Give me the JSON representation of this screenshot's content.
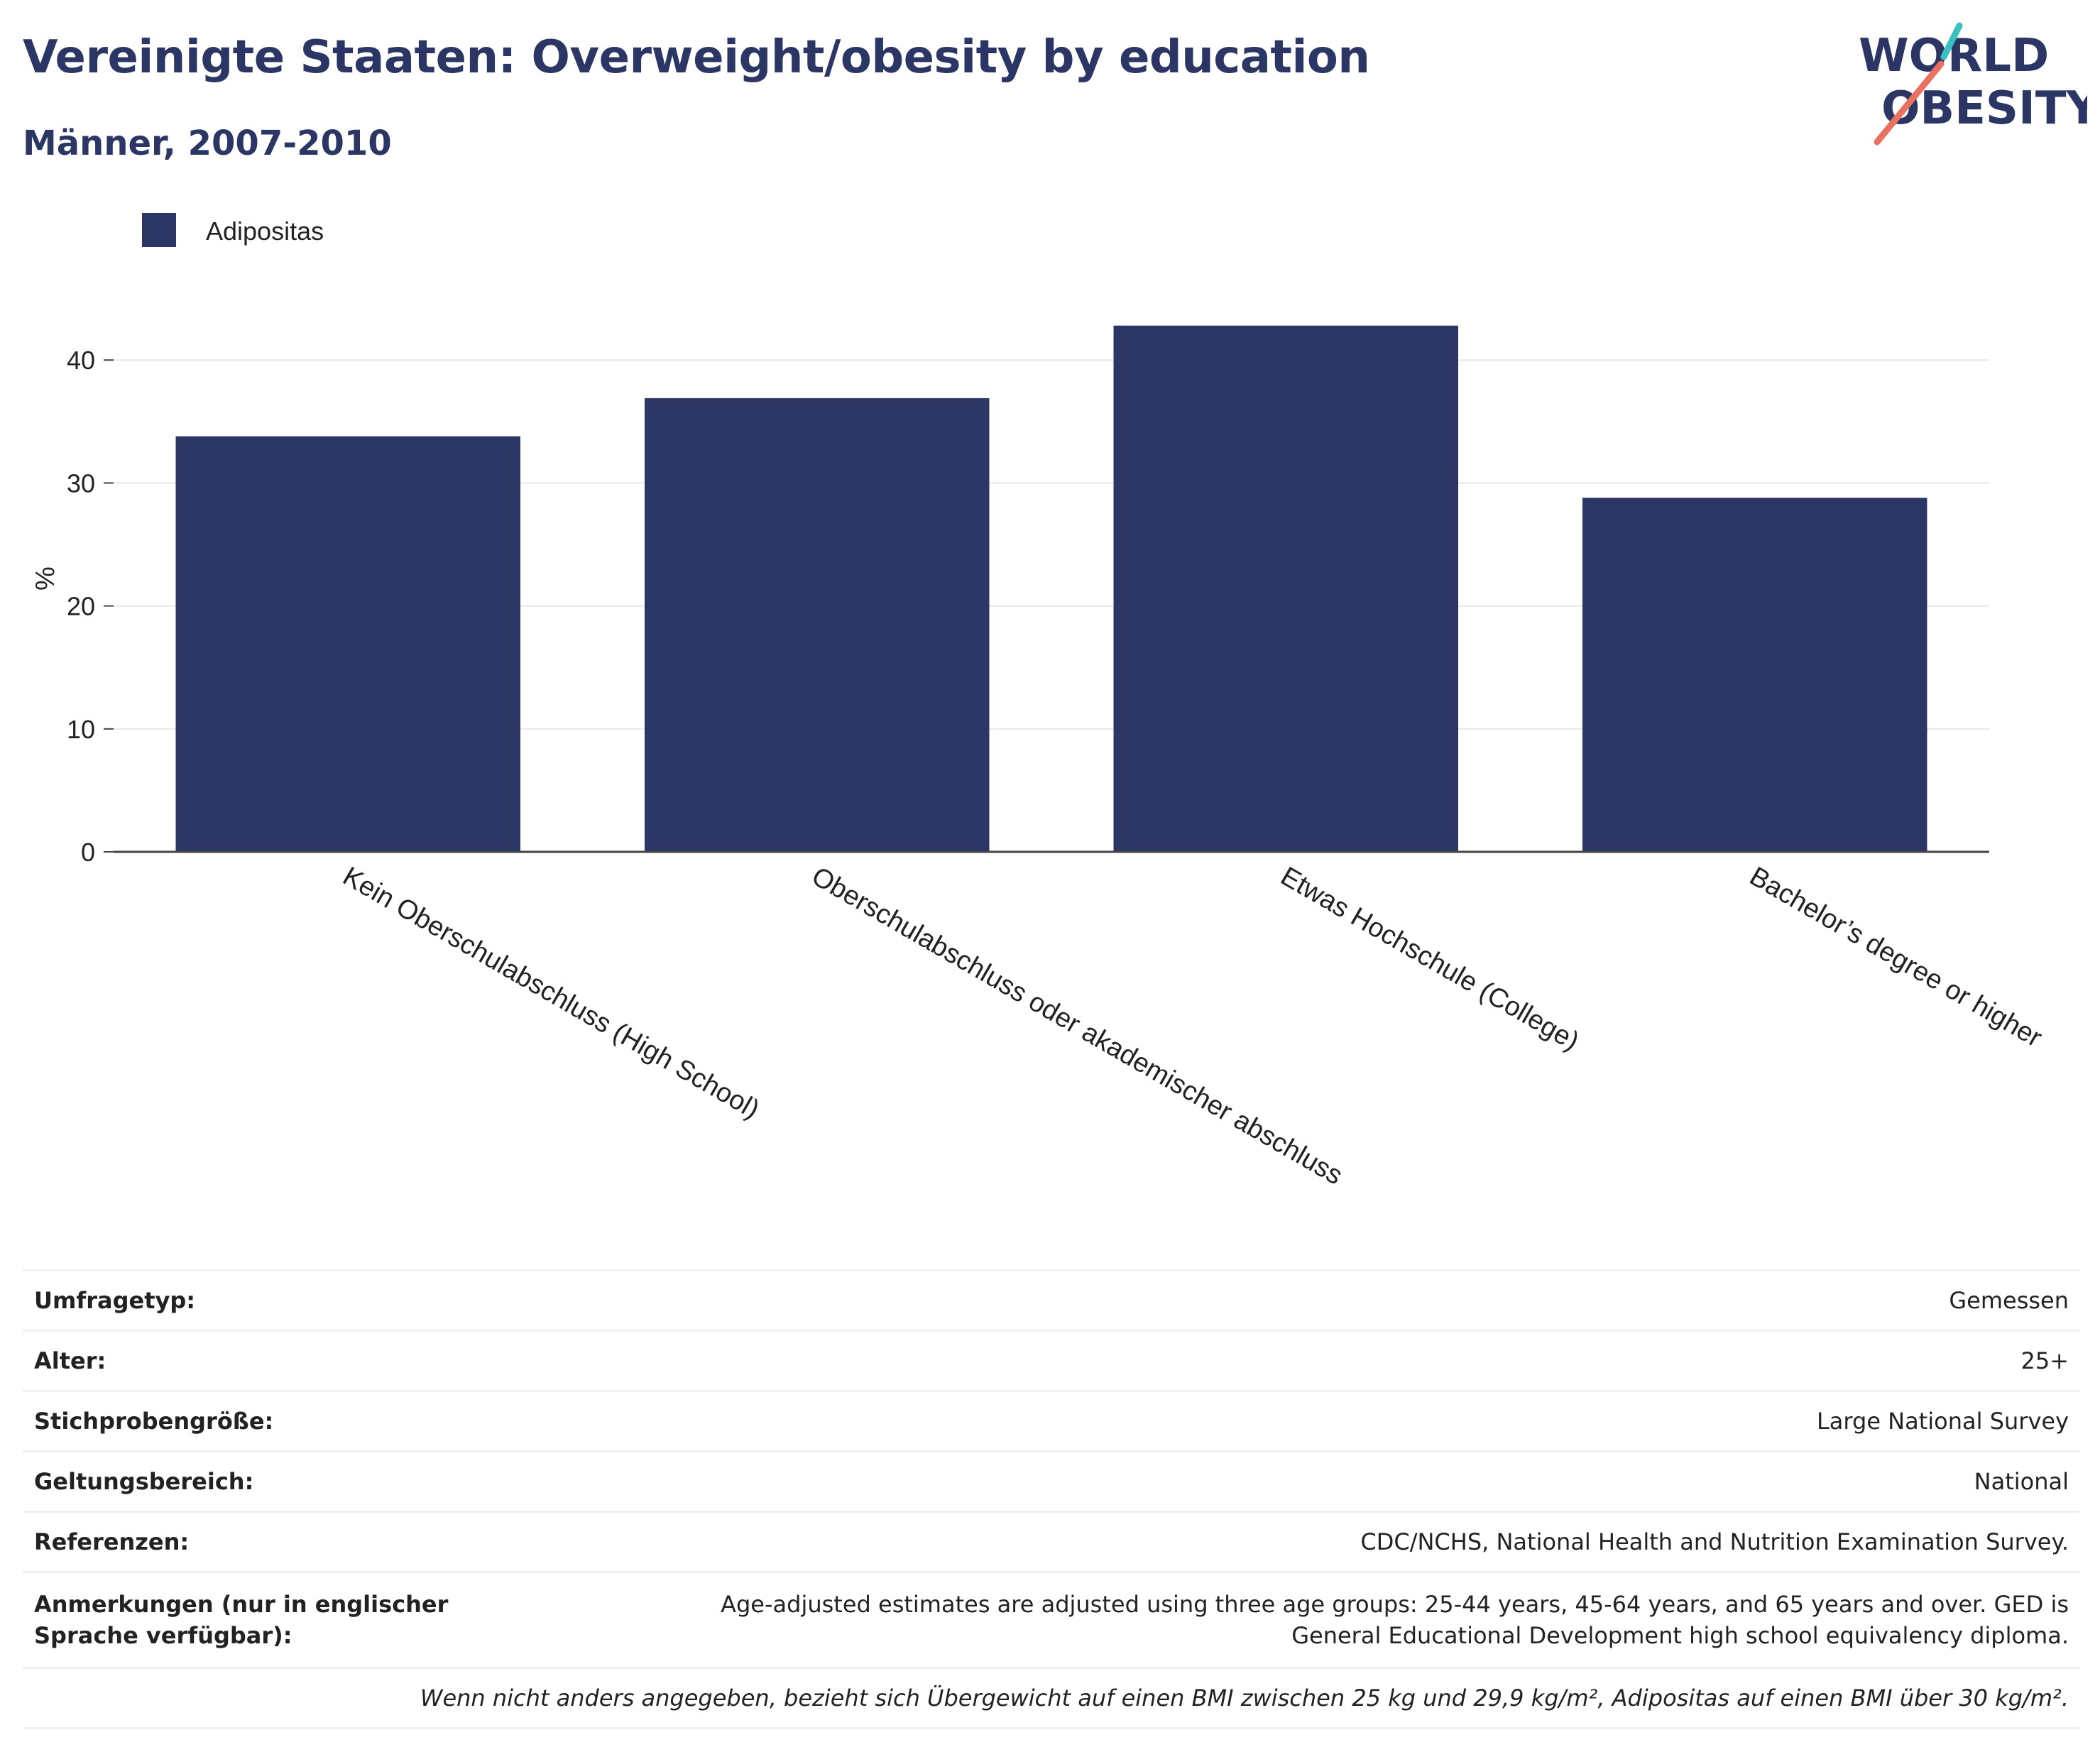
{
  "header": {
    "title": "Vereinigte Staaten: Overweight/obesity by education",
    "subtitle": "Männer, 2007-2010"
  },
  "logo": {
    "line1": "WORLD",
    "line2": "OBESITY",
    "name": "world-obesity-logo"
  },
  "chart_data": {
    "type": "bar",
    "title": "",
    "categories": [
      "Kein Oberschulabschluss (High School)",
      "Oberschulabschluss oder akademischer abschluss",
      "Etwas Hochschule (College)",
      "Bachelor’s degree or higher"
    ],
    "series": [
      {
        "name": "Adipositas",
        "values": [
          33.8,
          36.9,
          42.8,
          28.8
        ],
        "color": "#2b3664"
      }
    ],
    "xlabel": "",
    "ylabel": "%",
    "ylim": [
      0,
      45
    ],
    "yticks": [
      0,
      10,
      20,
      30,
      40
    ],
    "grid": true,
    "legend_position": "top-left"
  },
  "info": {
    "rows": [
      {
        "key": "Umfragetyp:",
        "value": "Gemessen"
      },
      {
        "key": "Alter:",
        "value": "25+"
      },
      {
        "key": "Stichprobengröße:",
        "value": "Large National Survey"
      },
      {
        "key": "Geltungsbereich:",
        "value": "National"
      },
      {
        "key": "Referenzen:",
        "value": "CDC/NCHS, National Health and Nutrition Examination Survey."
      }
    ],
    "notes_key": "Anmerkungen (nur in englischer Sprache verfügbar):",
    "notes_value": "Age-adjusted estimates are adjusted using three age groups: 25-44 years, 45-64 years, and 65 years and over. GED is General Educational Development high school equivalency diploma.",
    "footnote": "Wenn nicht anders angegeben, bezieht sich Übergewicht auf einen BMI zwischen 25 kg und 29,9 kg/m², Adipositas auf einen BMI über 30 kg/m²."
  },
  "colors": {
    "brand": "#2b3664",
    "bar": "#2b3664",
    "logo_teal": "#3bbfc1",
    "logo_coral": "#e8715f",
    "grid": "#e6e8ee"
  }
}
